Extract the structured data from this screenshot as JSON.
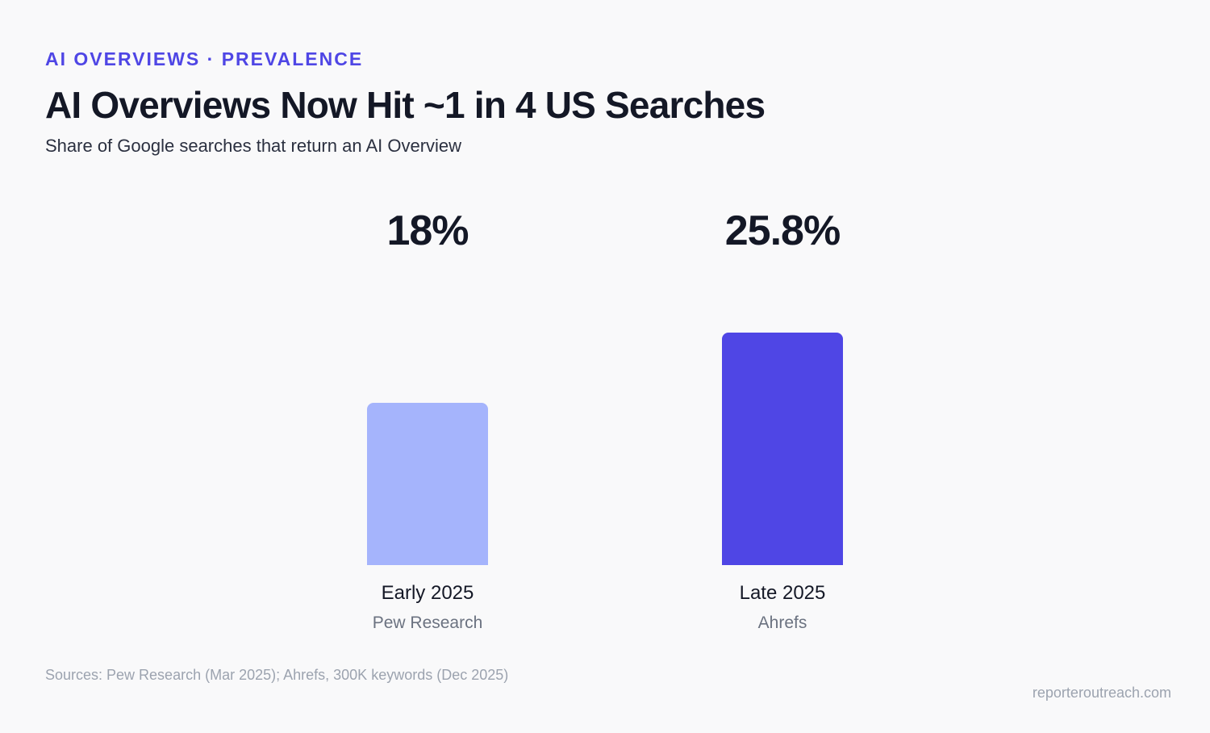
{
  "header": {
    "eyebrow": "AI OVERVIEWS · PREVALENCE",
    "title": "AI Overviews Now Hit ~1 in 4 US Searches",
    "subtitle": "Share of Google searches that return an AI Overview"
  },
  "footer": {
    "sources": "Sources: Pew Research (Mar 2025); Ahrefs, 300K keywords (Dec 2025)",
    "brand": "reporteroutreach.com"
  },
  "chart_data": {
    "type": "bar",
    "title": "AI Overviews Now Hit ~1 in 4 US Searches",
    "subtitle": "Share of Google searches that return an AI Overview",
    "categories": [
      "Early 2025",
      "Late 2025"
    ],
    "values": [
      18,
      25.8
    ],
    "value_labels": [
      "18%",
      "25.8%"
    ],
    "sources": [
      "Pew Research",
      "Ahrefs"
    ],
    "bar_colors": [
      "#a5b4fc",
      "#4f46e5"
    ],
    "ylabel": "",
    "xlabel": "",
    "ylim": [
      0,
      40
    ],
    "grid": false,
    "legend": "none"
  }
}
